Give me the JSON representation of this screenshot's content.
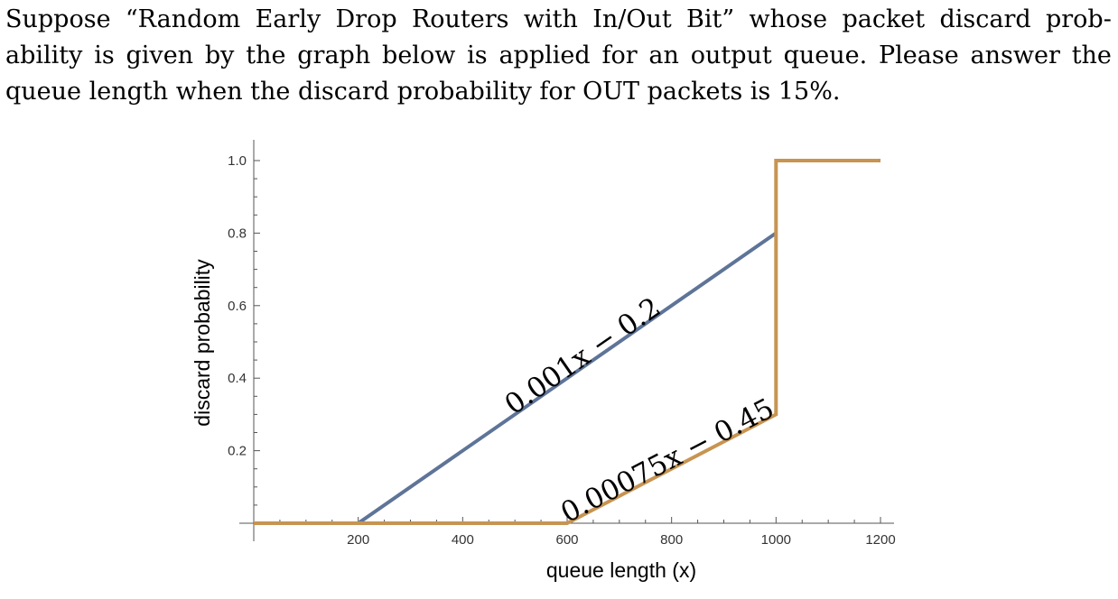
{
  "question": {
    "lines": [
      "Suppose “Random Early Drop Routers with In/Out Bit” whose packet discard prob-",
      "ability is given by the graph below is applied for an output queue. Please answer the",
      "queue length when the discard probability for OUT packets is 15%."
    ]
  },
  "chart_data": {
    "type": "line",
    "xlabel": "queue length (x)",
    "ylabel": "discard probability",
    "xlim": [
      0,
      1200
    ],
    "ylim": [
      0,
      1.0
    ],
    "xticks": [
      "200",
      "400",
      "600",
      "800",
      "1000",
      "1200"
    ],
    "yticks": [
      "0.2",
      "0.4",
      "0.6",
      "0.8",
      "1.0"
    ],
    "colors": {
      "in_series": "#5e7498",
      "out_series": "#c79452"
    },
    "series": [
      {
        "key": "in",
        "x": [
          0,
          200,
          1000
        ],
        "y": [
          0,
          0,
          0.8
        ]
      },
      {
        "key": "out",
        "x": [
          0,
          600,
          1000,
          1000,
          1200
        ],
        "y": [
          0,
          0,
          0.3,
          1.0,
          1.0
        ]
      }
    ],
    "annotations": [
      {
        "text": "0.001x − 0.2",
        "series": "in",
        "x": 640,
        "y": 0.44
      },
      {
        "text": "0.00075x − 0.45",
        "series": "out",
        "x": 800,
        "y": 0.15
      }
    ]
  }
}
